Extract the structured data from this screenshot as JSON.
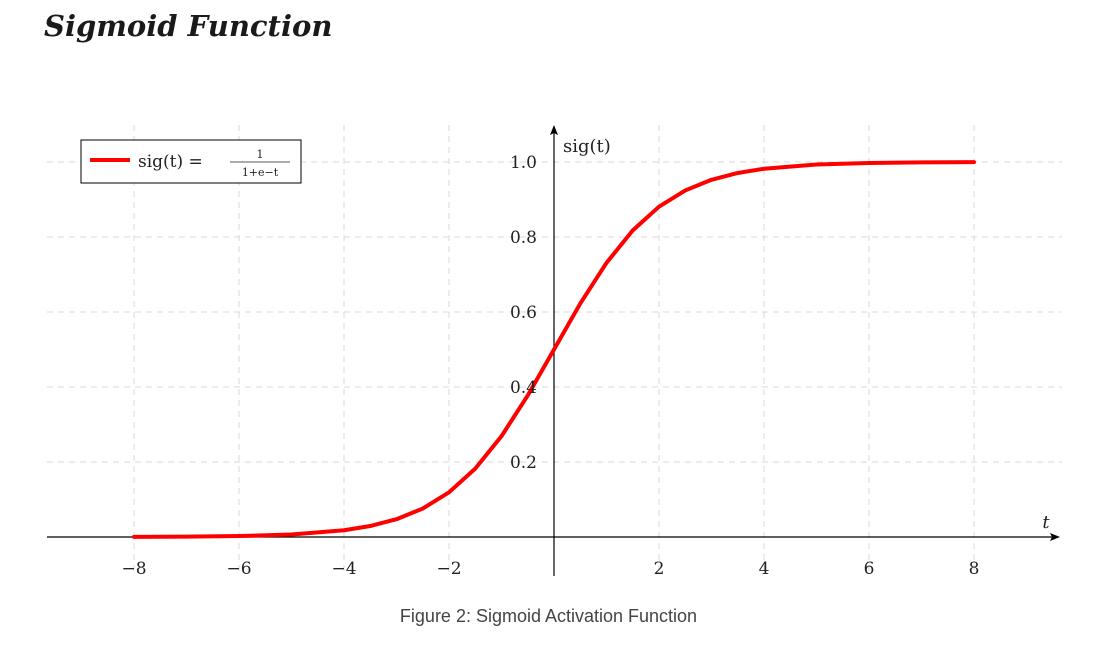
{
  "page": {
    "title": "Sigmoid Function",
    "caption": "Figure 2: Sigmoid Activation Function"
  },
  "chart_data": {
    "type": "line",
    "xlabel": "t",
    "ylabel": "sig(t)",
    "xlim": [
      -8,
      8
    ],
    "ylim": [
      0,
      1.0
    ],
    "x_ticks": [
      -8,
      -6,
      -4,
      -2,
      2,
      4,
      6,
      8
    ],
    "x_tick_labels": [
      "−8",
      "−6",
      "−4",
      "−2",
      "2",
      "4",
      "6",
      "8"
    ],
    "y_ticks": [
      0.2,
      0.4,
      0.6,
      0.8,
      1.0
    ],
    "y_tick_labels": [
      "0.2",
      "0.4",
      "0.6",
      "0.8",
      "1.0"
    ],
    "grid": true,
    "legend_position": "top-left",
    "series": [
      {
        "name": "sig(t) = 1/(1+e^−t)",
        "legend": {
          "lhs": "sig(t) =",
          "numerator": "1",
          "denominator": "1+e−t"
        },
        "color": "#ff0000",
        "x": [
          -8,
          -7,
          -6,
          -5,
          -4,
          -3.5,
          -3,
          -2.5,
          -2,
          -1.5,
          -1,
          -0.5,
          0,
          0.5,
          1,
          1.5,
          2,
          2.5,
          3,
          3.5,
          4,
          5,
          6,
          7,
          8
        ],
        "y": [
          0.0003,
          0.0009,
          0.0025,
          0.0067,
          0.018,
          0.0293,
          0.0474,
          0.0759,
          0.1192,
          0.1824,
          0.2689,
          0.3775,
          0.5,
          0.6225,
          0.7311,
          0.8176,
          0.8808,
          0.9241,
          0.9526,
          0.9707,
          0.982,
          0.9933,
          0.9975,
          0.9991,
          0.9997
        ]
      }
    ]
  }
}
